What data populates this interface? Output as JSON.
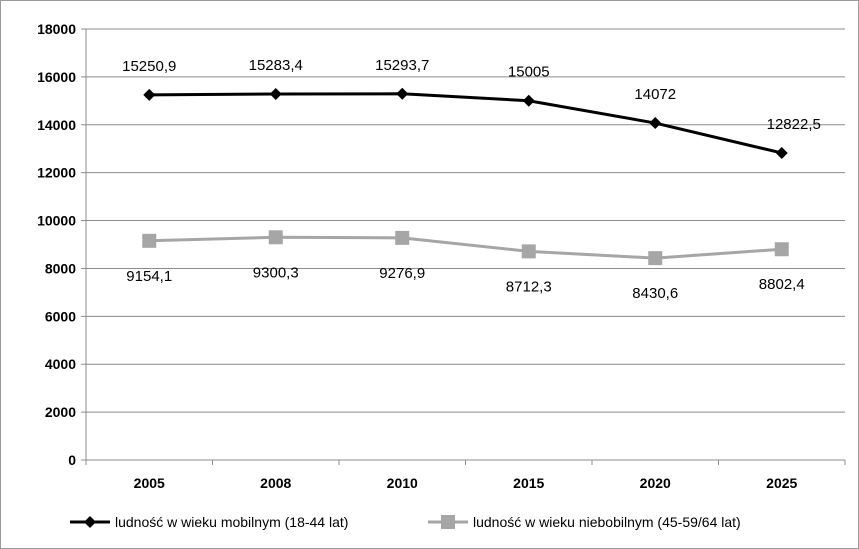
{
  "chart_data": {
    "type": "line",
    "title": "",
    "xlabel": "",
    "ylabel": "",
    "categories": [
      "2005",
      "2008",
      "2010",
      "2015",
      "2020",
      "2025"
    ],
    "ylim": [
      0,
      18000
    ],
    "y_ticks": [
      "0",
      "2000",
      "4000",
      "6000",
      "8000",
      "10000",
      "12000",
      "14000",
      "16000",
      "18000"
    ],
    "grid": "horizontal",
    "legend_position": "bottom",
    "series": [
      {
        "name": "ludność w wieku mobilnym (18-44 lat)",
        "values": [
          15250.9,
          15283.4,
          15293.7,
          15005,
          14072,
          12822.5
        ],
        "data_labels": [
          "15250,9",
          "15283,4",
          "15293,7",
          "15005",
          "14072",
          "12822,5"
        ],
        "color": "#000000",
        "marker": "diamond"
      },
      {
        "name": "ludność w wieku niebobilnym (45-59/64 lat)",
        "values": [
          9154.1,
          9300.3,
          9276.9,
          8712.3,
          8430.6,
          8802.4
        ],
        "data_labels": [
          "9154,1",
          "9300,3",
          "9276,9",
          "8712,3",
          "8430,6",
          "8802,4"
        ],
        "color": "#a6a6a6",
        "marker": "square"
      }
    ]
  }
}
